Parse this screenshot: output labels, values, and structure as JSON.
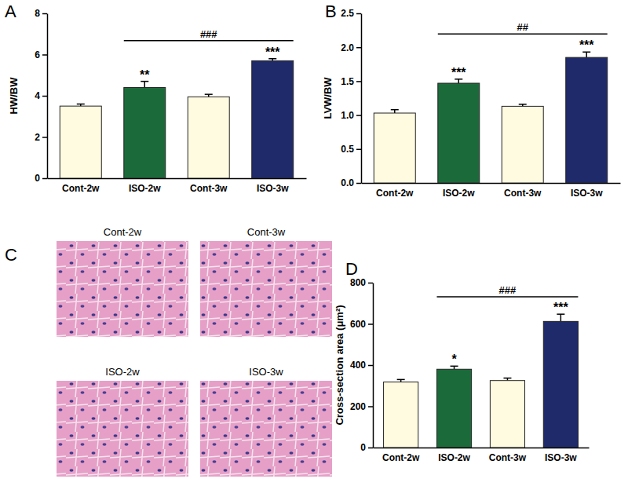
{
  "chart_data": [
    {
      "type": "bar",
      "title": "A",
      "y_label": "HW/BW",
      "categories": [
        "Cont-2w",
        "ISO-2w",
        "Cont-3w",
        "ISO-3w"
      ],
      "values": [
        3.5,
        4.4,
        3.95,
        5.7
      ],
      "errors": [
        0.1,
        0.3,
        0.12,
        0.1
      ],
      "colors": [
        "#fffbe0",
        "#1b6b3a",
        "#fffbe0",
        "#1f2a6b"
      ],
      "ylim": [
        0,
        8
      ],
      "yticks": [
        0,
        2,
        4,
        6,
        8
      ],
      "annotations": [
        {
          "text": "**",
          "category": "ISO-2w"
        },
        {
          "text": "***",
          "category": "ISO-3w"
        },
        {
          "text": "###",
          "from": "ISO-2w",
          "to": "ISO-3w"
        }
      ]
    },
    {
      "type": "bar",
      "title": "B",
      "y_label": "LVW/BW",
      "categories": [
        "Cont-2w",
        "ISO-2w",
        "Cont-3w",
        "ISO-3w"
      ],
      "values": [
        1.03,
        1.47,
        1.13,
        1.85
      ],
      "errors": [
        0.05,
        0.06,
        0.03,
        0.08
      ],
      "colors": [
        "#fffbe0",
        "#1b6b3a",
        "#fffbe0",
        "#1f2a6b"
      ],
      "ylim": [
        0,
        2.5
      ],
      "yticks": [
        {
          "value": 0,
          "label": "0.0"
        },
        {
          "value": 0.5,
          "label": "0.5"
        },
        {
          "value": 1,
          "label": "1.0"
        },
        {
          "value": 1.5,
          "label": "1.5"
        },
        {
          "value": 2,
          "label": "2.0"
        },
        {
          "value": 2.5,
          "label": "2.5"
        }
      ],
      "annotations": [
        {
          "text": "***",
          "category": "ISO-2w"
        },
        {
          "text": "***",
          "category": "ISO-3w"
        },
        {
          "text": "##",
          "from": "ISO-2w",
          "to": "ISO-3w"
        }
      ]
    },
    {
      "type": "bar",
      "title": "D",
      "y_label": "Cross-section area (μm²)",
      "categories": [
        "Cont-2w",
        "ISO-2w",
        "Cont-3w",
        "ISO-3w"
      ],
      "values": [
        318,
        380,
        325,
        612
      ],
      "errors": [
        12,
        15,
        12,
        35
      ],
      "colors": [
        "#fffbe0",
        "#1b6b3a",
        "#fffbe0",
        "#1f2a6b"
      ],
      "ylim": [
        0,
        800
      ],
      "yticks": [
        0,
        200,
        400,
        600,
        800
      ],
      "annotations": [
        {
          "text": "*",
          "category": "ISO-2w"
        },
        {
          "text": "***",
          "category": "ISO-3w"
        },
        {
          "text": "###",
          "from": "ISO-2w",
          "to": "ISO-3w"
        }
      ]
    }
  ],
  "panel_c": {
    "title": "C",
    "labels": [
      "Cont-2w",
      "Cont-3w",
      "ISO-2w",
      "ISO-3w"
    ]
  }
}
